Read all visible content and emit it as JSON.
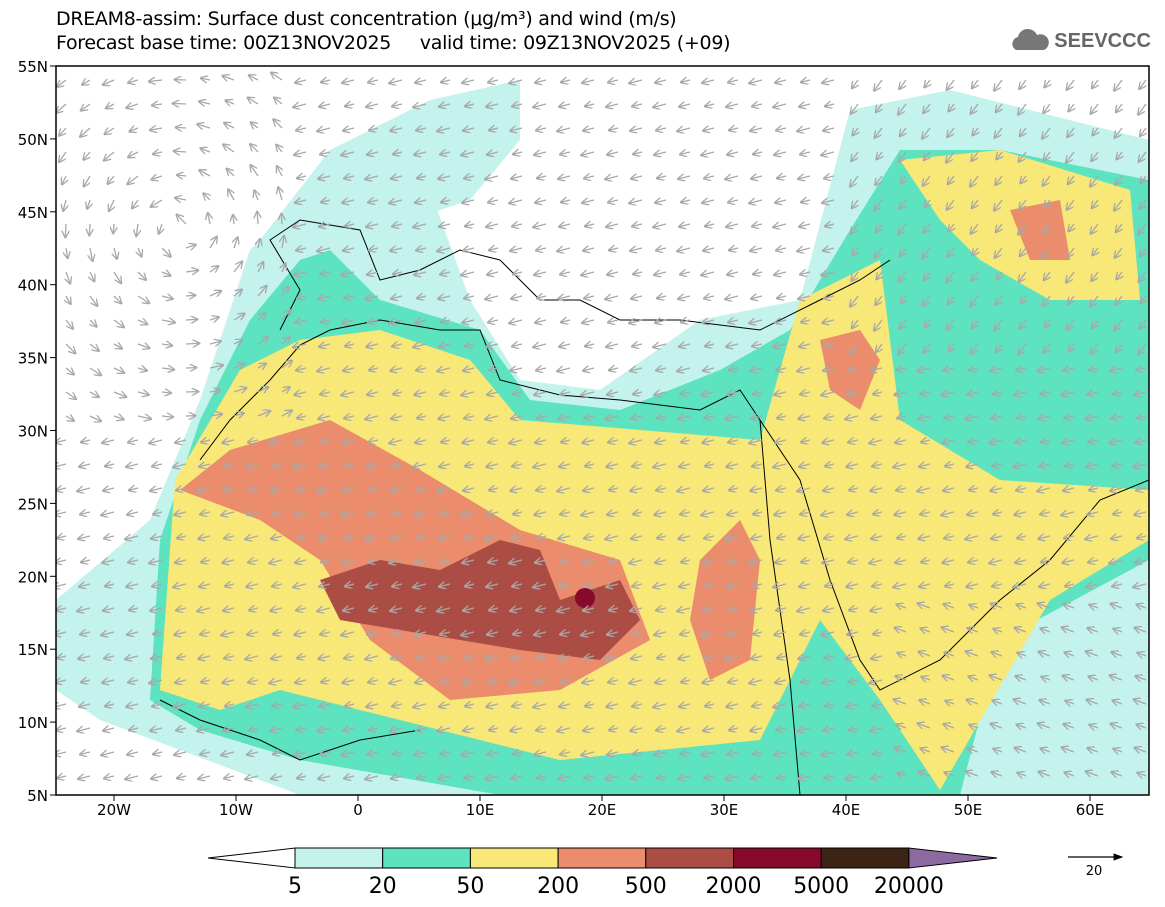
{
  "header": {
    "title_line1": "DREAM8-assim: Surface dust concentration (μg/m³) and wind (m/s)",
    "title_line2": "Forecast base time: 00Z13NOV2025     valid time: 09Z13NOV2025 (+09)",
    "logo_text": "SEEVCCC"
  },
  "axes": {
    "lat_labels": [
      "55N",
      "50N",
      "45N",
      "40N",
      "35N",
      "30N",
      "25N",
      "20N",
      "15N",
      "10N",
      "5N"
    ],
    "lon_labels": [
      "20W",
      "10W",
      "0",
      "10E",
      "20E",
      "30E",
      "40E",
      "50E",
      "60E"
    ],
    "lon_range": [
      -25,
      65
    ],
    "lat_range": [
      5,
      55
    ]
  },
  "legend": {
    "labels": [
      "5",
      "20",
      "50",
      "200",
      "500",
      "2000",
      "5000",
      "20000"
    ],
    "colors": [
      "#ffffff",
      "#c4f2ec",
      "#5de3c0",
      "#f8e878",
      "#eb8c6c",
      "#ab4d44",
      "#870a2d",
      "#3b2414",
      "#8c6aa0"
    ],
    "wind_ref_label": "20"
  }
}
